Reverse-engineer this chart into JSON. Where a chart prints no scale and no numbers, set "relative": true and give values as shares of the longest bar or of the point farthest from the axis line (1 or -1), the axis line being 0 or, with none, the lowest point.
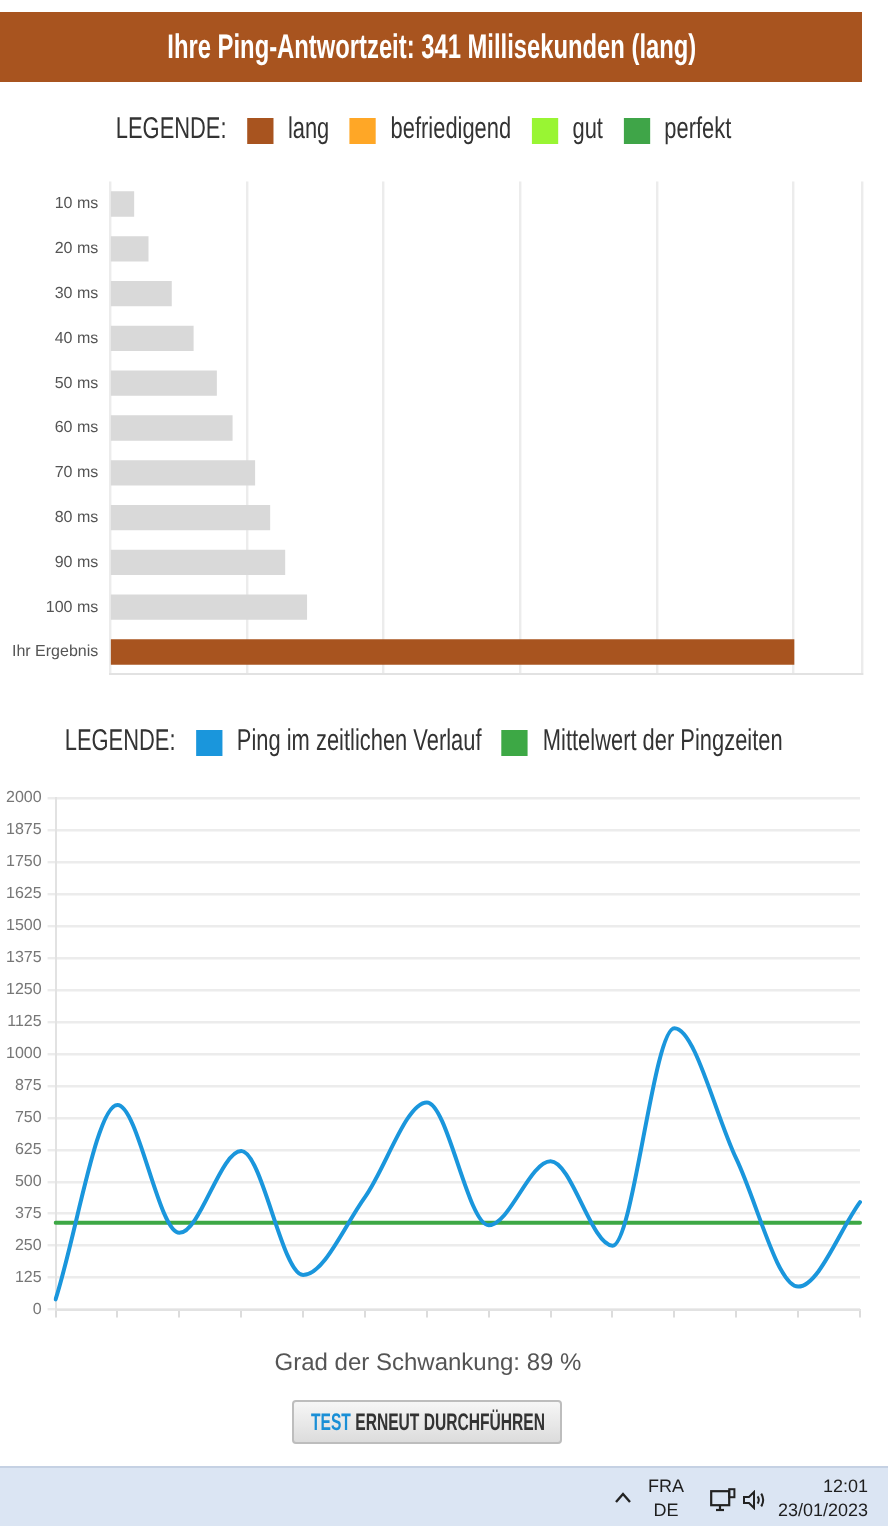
{
  "chart_data": [
    {
      "type": "bar",
      "title": "Ihre Ping-Antwortzeit: 341 Millisekunden (lang)",
      "legend_title": "LEGENDE:",
      "legend": "top",
      "orientation": "horizontal",
      "relative": true,
      "grid": "x",
      "categories": [
        "10 ms",
        "20 ms",
        "30 ms",
        "40 ms",
        "50 ms",
        "60 ms",
        "70 ms",
        "80 ms",
        "90 ms",
        "100 ms",
        "Ihr Ergebnis"
      ],
      "series": [
        {
          "color": "#d9d9d9",
          "values": [
            0.034,
            0.055,
            0.089,
            0.121,
            0.155,
            0.178,
            0.211,
            0.233,
            0.255,
            0.287,
            null
          ]
        },
        {
          "name": "lang",
          "color": "#a8541f",
          "values": [
            null,
            null,
            null,
            null,
            null,
            null,
            null,
            null,
            null,
            null,
            1
          ]
        },
        {
          "name": "befriedigend",
          "color": "#ffa726",
          "values": [
            null,
            null,
            null,
            null,
            null,
            null,
            null,
            null,
            null,
            null,
            null
          ]
        },
        {
          "name": "gut",
          "color": "#99f533",
          "values": [
            null,
            null,
            null,
            null,
            null,
            null,
            null,
            null,
            null,
            null,
            null
          ]
        },
        {
          "name": "perfekt",
          "color": "#3fa548",
          "values": [
            null,
            null,
            null,
            null,
            null,
            null,
            null,
            null,
            null,
            null,
            null
          ]
        }
      ]
    },
    {
      "type": "line",
      "legend_title": "LEGENDE:",
      "legend": "top",
      "grid": "y",
      "categories": [
        null,
        null,
        null,
        null,
        null,
        null,
        null,
        null,
        null,
        null,
        null,
        null,
        null,
        null
      ],
      "ylim": [
        0,
        2000
      ],
      "yticks": [
        0,
        125,
        250,
        375,
        500,
        625,
        750,
        875,
        1000,
        1125,
        1250,
        1375,
        1500,
        1625,
        1750,
        1875,
        2000
      ],
      "series": [
        {
          "name": "Ping im zeitlichen Verlauf",
          "color": "#1a96dc",
          "values": [
            40,
            800,
            300,
            620,
            135,
            440,
            810,
            330,
            580,
            250,
            1100,
            590,
            90,
            420
          ]
        },
        {
          "name": "Mittelwert der Pingzeiten",
          "color": "#3da845",
          "values": [
            340,
            340,
            340,
            340,
            340,
            340,
            340,
            340,
            340,
            340,
            340,
            340,
            340,
            340
          ]
        }
      ],
      "annotations": [
        "Grad der Schwankung: 89 %",
        "TEST",
        "ERNEUT DURCHFÜHREN"
      ]
    },
    {
      "type": "other",
      "annotations": [
        "FRA",
        "DE",
        "12:01",
        "23/01/2023"
      ]
    }
  ]
}
